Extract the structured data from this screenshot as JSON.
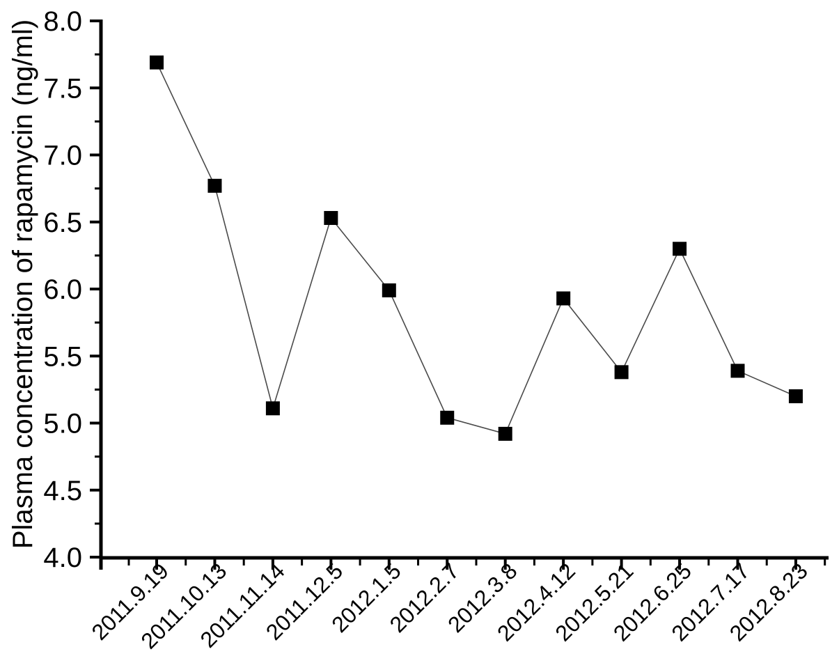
{
  "chart_data": {
    "type": "line",
    "title": "",
    "ylabel": "Plasma concentration of rapamycin (ng/ml)",
    "xlabel": "",
    "categories": [
      "2011.9.19",
      "2011.10.13",
      "2011.11.14",
      "2011.12.5",
      "2012.1.5",
      "2012.2.7",
      "2012.3.8",
      "2012.4.12",
      "2012.5.21",
      "2012.6.25",
      "2012.7.17",
      "2012.8.23"
    ],
    "series": [
      {
        "name": "Plasma concentration of rapamycin",
        "marker": "filled-square",
        "values": [
          7.69,
          6.77,
          5.11,
          6.53,
          5.99,
          5.04,
          4.92,
          5.93,
          5.38,
          6.3,
          5.39,
          5.2
        ]
      }
    ],
    "ylim": [
      4.0,
      8.0
    ],
    "y_major_tick_step": 0.5,
    "y_minor_tick_step": 0.25,
    "y_tick_labels": [
      "4.0",
      "4.5",
      "5.0",
      "5.5",
      "6.0",
      "6.5",
      "7.0",
      "7.5",
      "8.0"
    ],
    "x_tick_label_rotation_deg": -45,
    "grid": false,
    "legend_position": "none",
    "colors": {
      "marker": "#000000",
      "line": "#4a4a4a",
      "axis": "#000000",
      "text": "#000000",
      "background": "#ffffff"
    }
  }
}
